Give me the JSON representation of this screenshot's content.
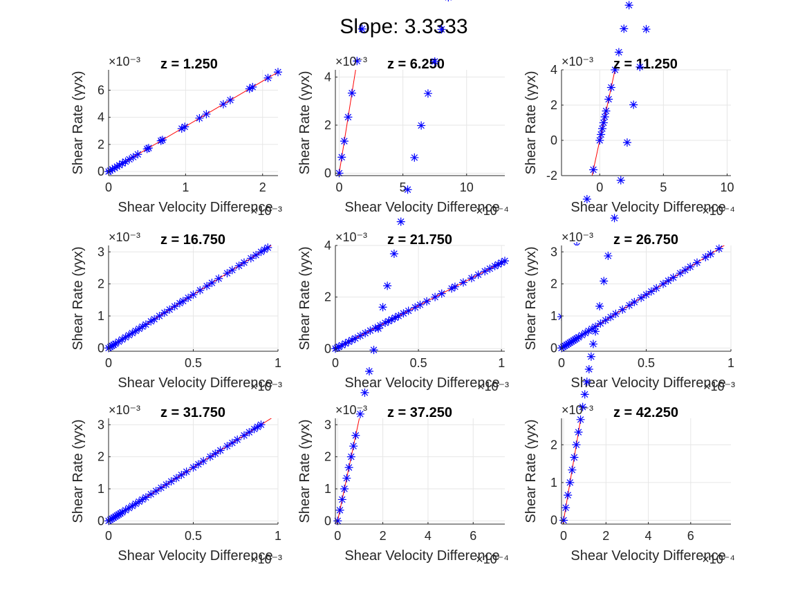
{
  "figure": {
    "title": "Slope: 3.3333",
    "colors": {
      "marker": "#0000ff",
      "fit_line": "#ff0000",
      "axes": "#262626",
      "grid": "#e6e6e6"
    }
  },
  "chart_data": [
    {
      "type": "scatter",
      "title": "z = 1.250",
      "xlabel": "Shear Velocity Difference",
      "ylabel": "Shear Rate (γyx)",
      "x_exponent_label": "×10⁻³",
      "y_exponent_label": "×10⁻³",
      "xlim": [
        0,
        2.2
      ],
      "ylim": [
        -0.3,
        7.5
      ],
      "xticks": [
        0,
        1,
        2
      ],
      "yticks": [
        0,
        2,
        4,
        6
      ],
      "grid": true,
      "slope": 3.3333,
      "intercept": 0,
      "series": [
        {
          "marker": "*",
          "x": [
            0,
            0.02,
            0.05,
            0.08,
            0.11,
            0.14,
            0.18,
            0.22,
            0.27,
            0.32,
            0.38,
            0.5,
            0.52,
            0.68,
            0.7,
            0.95,
            0.99,
            1.18,
            1.27,
            1.49,
            1.58,
            1.83,
            1.87,
            2.07,
            2.2
          ]
        }
      ],
      "fit": {
        "color": "#ff0000"
      }
    },
    {
      "type": "scatter",
      "title": "z = 6.250",
      "xlabel": "Shear Velocity Difference",
      "ylabel": "Shear Rate (γyx)",
      "x_exponent_label": "×10⁻⁴",
      "y_exponent_label": "×10⁻³",
      "xlim": [
        -0.3,
        13
      ],
      "ylim": [
        -0.1,
        4.3
      ],
      "xticks": [
        0,
        5,
        10
      ],
      "yticks": [
        0,
        2,
        4
      ],
      "grid": true,
      "slope": 3.3333,
      "intercept": 0,
      "series": [
        {
          "marker": "*",
          "x": [
            0,
            0.2,
            0.4,
            0.7,
            1.0,
            1.4,
            1.8,
            2.3,
            2.8,
            3.4,
            4.0,
            4.7,
            5.6,
            6.1,
            7.0,
            7.4,
            8.3,
            9.0,
            9.5,
            10.0,
            10.8,
            11.3,
            11.9,
            12.3,
            12.6,
            12.9,
            13.0
          ]
        }
      ],
      "fit": {
        "color": "#ff0000"
      }
    },
    {
      "type": "scatter",
      "title": "z = 11.250",
      "xlabel": "Shear Velocity Difference",
      "ylabel": "Shear Rate (γyx)",
      "x_exponent_label": "×10⁻⁴",
      "y_exponent_label": "×10⁻³",
      "xlim": [
        -3,
        10.3
      ],
      "ylim": [
        -2,
        4
      ],
      "xticks": [
        0,
        5,
        10
      ],
      "yticks": [
        -2,
        0,
        2,
        4
      ],
      "grid": true,
      "slope": 3.3333,
      "intercept": 0,
      "series": [
        {
          "marker": "*",
          "x": [
            -3.0,
            -1.8,
            -1.0,
            -0.5,
            0,
            0.1,
            0.2,
            0.3,
            0.4,
            0.5,
            0.7,
            0.9,
            1.2,
            1.5,
            1.9,
            2.3,
            2.8,
            3.3,
            3.9,
            4.6,
            5.3,
            6.0,
            6.6,
            7.2,
            7.7,
            8.2,
            8.7,
            9.2,
            9.6,
            10.0,
            10.3
          ]
        }
      ],
      "fit": {
        "color": "#ff0000"
      }
    },
    {
      "type": "scatter",
      "title": "z = 16.750",
      "xlabel": "Shear Velocity Difference",
      "ylabel": "Shear Rate (γyx)",
      "x_exponent_label": "×10⁻³",
      "y_exponent_label": "×10⁻³",
      "xlim": [
        0,
        1
      ],
      "ylim": [
        -0.1,
        3.2
      ],
      "xticks": [
        0,
        0.5,
        1
      ],
      "yticks": [
        0,
        1,
        2,
        3
      ],
      "grid": true,
      "slope": 3.3333,
      "intercept": 0,
      "series": [
        {
          "marker": "*",
          "x": [
            0,
            0.01,
            0.02,
            0.03,
            0.04,
            0.06,
            0.08,
            0.1,
            0.12,
            0.14,
            0.16,
            0.18,
            0.2,
            0.22,
            0.25,
            0.27,
            0.3,
            0.33,
            0.36,
            0.39,
            0.42,
            0.44,
            0.47,
            0.5,
            0.54,
            0.58,
            0.61,
            0.65,
            0.7,
            0.73,
            0.77,
            0.8,
            0.84,
            0.87,
            0.9,
            0.92,
            0.94
          ]
        }
      ],
      "fit": {
        "color": "#ff0000"
      }
    },
    {
      "type": "scatter",
      "title": "z = 21.750",
      "xlabel": "Shear Velocity Difference",
      "ylabel": "Shear Rate (γyx)",
      "x_exponent_label": "×10⁻³",
      "y_exponent_label": "×10⁻³",
      "xlim": [
        0,
        1.02
      ],
      "ylim": [
        -0.1,
        4
      ],
      "xticks": [
        0,
        0.5,
        1
      ],
      "yticks": [
        0,
        2,
        4
      ],
      "grid": true,
      "slope": 3.3333,
      "intercept": 0,
      "series": [
        {
          "marker": "*",
          "x": [
            0,
            0.01,
            0.02,
            0.04,
            0.06,
            0.08,
            0.1,
            0.12,
            0.15,
            0.18,
            0.21,
            0.24,
            0.27,
            0.3,
            0.32,
            0.34,
            0.36,
            0.38,
            0.41,
            0.44,
            0.48,
            0.51,
            0.55,
            0.6,
            0.64,
            0.7,
            0.72,
            0.77,
            0.82,
            0.86,
            0.9,
            0.93,
            0.96,
            0.98,
            1.0,
            1.02
          ]
        }
      ],
      "fit": {
        "color": "#ff0000"
      }
    },
    {
      "type": "scatter",
      "title": "z = 26.750",
      "xlabel": "Shear Velocity Difference",
      "ylabel": "Shear Rate (γyx)",
      "x_exponent_label": "×10⁻³",
      "y_exponent_label": "×10⁻³",
      "xlim": [
        0,
        1
      ],
      "ylim": [
        -0.1,
        3.2
      ],
      "xticks": [
        0,
        0.5,
        1
      ],
      "yticks": [
        0,
        1,
        2,
        3
      ],
      "grid": true,
      "slope": 3.3333,
      "intercept": 0,
      "series": [
        {
          "marker": "*",
          "x": [
            0,
            0.01,
            0.02,
            0.03,
            0.04,
            0.05,
            0.06,
            0.07,
            0.08,
            0.09,
            0.1,
            0.12,
            0.14,
            0.16,
            0.18,
            0.2,
            0.23,
            0.26,
            0.29,
            0.32,
            0.36,
            0.4,
            0.43,
            0.47,
            0.5,
            0.53,
            0.56,
            0.6,
            0.63,
            0.66,
            0.7,
            0.73,
            0.76,
            0.8,
            0.85,
            0.88,
            0.93
          ]
        }
      ],
      "fit": {
        "color": "#ff0000"
      }
    },
    {
      "type": "scatter",
      "title": "z = 31.750",
      "xlabel": "Shear Velocity Difference",
      "ylabel": "Shear Rate (γyx)",
      "x_exponent_label": "×10⁻³",
      "y_exponent_label": "×10⁻³",
      "xlim": [
        0,
        1
      ],
      "ylim": [
        -0.1,
        3.2
      ],
      "xticks": [
        0,
        0.5,
        1
      ],
      "yticks": [
        0,
        1,
        2,
        3
      ],
      "grid": true,
      "slope": 3.3333,
      "intercept": 0,
      "series": [
        {
          "marker": "*",
          "x": [
            0,
            0.01,
            0.02,
            0.03,
            0.04,
            0.05,
            0.06,
            0.07,
            0.08,
            0.1,
            0.12,
            0.14,
            0.16,
            0.18,
            0.2,
            0.22,
            0.25,
            0.28,
            0.31,
            0.34,
            0.37,
            0.4,
            0.43,
            0.46,
            0.5,
            0.53,
            0.56,
            0.6,
            0.63,
            0.66,
            0.7,
            0.73,
            0.76,
            0.8,
            0.83,
            0.86,
            0.88,
            0.9
          ]
        }
      ],
      "fit": {
        "color": "#ff0000"
      }
    },
    {
      "type": "scatter",
      "title": "z = 37.250",
      "xlabel": "Shear Velocity Difference",
      "ylabel": "Shear Rate (γyx)",
      "x_exponent_label": "×10⁻⁴",
      "y_exponent_label": "×10⁻³",
      "xlim": [
        -0.1,
        7.4
      ],
      "ylim": [
        -0.1,
        3.2
      ],
      "xticks": [
        0,
        2,
        4,
        6
      ],
      "yticks": [
        0,
        1,
        2,
        3
      ],
      "grid": true,
      "slope": 3.3333,
      "intercept": 0,
      "series": [
        {
          "marker": "*",
          "x": [
            0,
            0.1,
            0.2,
            0.3,
            0.4,
            0.5,
            0.6,
            0.7,
            0.8,
            1.0,
            1.2,
            1.4,
            1.6,
            1.8,
            2.0,
            2.2,
            2.5,
            2.8,
            3.1,
            3.4,
            3.7,
            4.0,
            4.3,
            4.6,
            4.9,
            5.2,
            5.5,
            5.8,
            6.1,
            6.4,
            6.7,
            7.0,
            7.2,
            7.4
          ]
        }
      ],
      "fit": {
        "color": "#ff0000"
      }
    },
    {
      "type": "scatter",
      "title": "z = 42.250",
      "xlabel": "Shear Velocity Difference",
      "ylabel": "Shear Rate (γyx)",
      "x_exponent_label": "×10⁻⁴",
      "y_exponent_label": "×10⁻³",
      "xlim": [
        -0.1,
        7.9
      ],
      "ylim": [
        -0.1,
        2.7
      ],
      "xticks": [
        0,
        2,
        4,
        6
      ],
      "yticks": [
        0,
        1,
        2
      ],
      "grid": true,
      "slope": 3.3333,
      "intercept": 0,
      "series": [
        {
          "marker": "*",
          "x": [
            0,
            0.1,
            0.2,
            0.3,
            0.4,
            0.5,
            0.6,
            0.7,
            0.8,
            0.9,
            1.0,
            1.1,
            1.2,
            1.3,
            1.4,
            1.5,
            1.7,
            1.9,
            2.1,
            2.4,
            2.7,
            3.0,
            3.3,
            3.6,
            3.9,
            4.2,
            4.5,
            4.8,
            5.1,
            5.4,
            5.7,
            6.0,
            6.3,
            6.6,
            6.9,
            7.2,
            7.5,
            7.8
          ]
        }
      ],
      "fit": {
        "color": "#ff0000"
      }
    }
  ]
}
